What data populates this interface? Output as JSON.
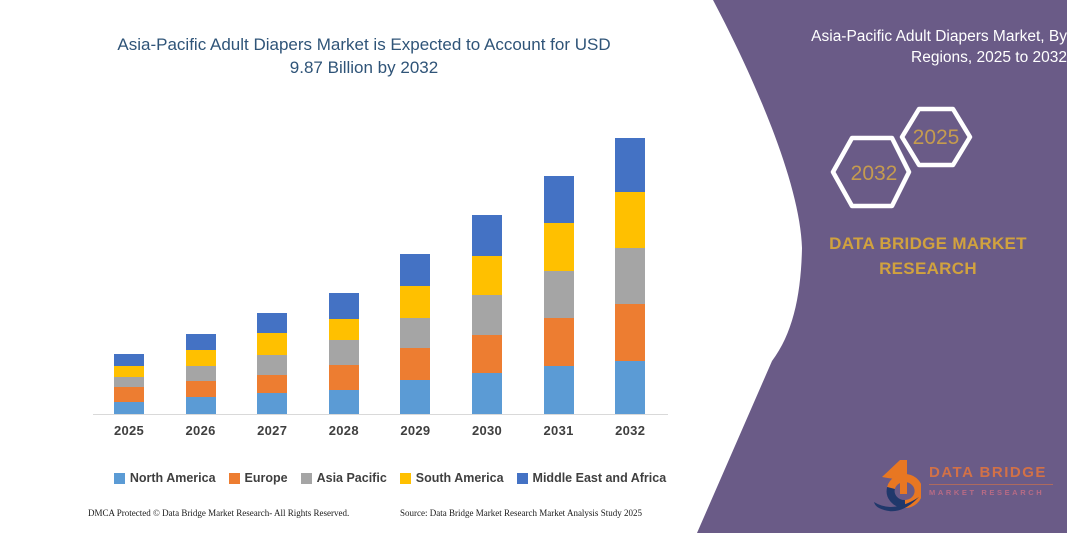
{
  "chart_data": {
    "type": "bar",
    "stacked": true,
    "title": "Asia-Pacific Adult Diapers Market is Expected to Account for USD 9.87 Billion by 2032",
    "xlabel": "",
    "ylabel": "",
    "y_axis_visible": false,
    "units": "relative segment heights (no numeric axis shown in figure)",
    "legend_position": "bottom",
    "categories": [
      "2025",
      "2026",
      "2027",
      "2028",
      "2029",
      "2030",
      "2031",
      "2032"
    ],
    "series": [
      {
        "name": "North America",
        "color": "#5B9BD5",
        "values": [
          12,
          17,
          21,
          24,
          34,
          41,
          48,
          53
        ]
      },
      {
        "name": "Europe",
        "color": "#ED7D31",
        "values": [
          15,
          16,
          18,
          25,
          32,
          38,
          48,
          57
        ]
      },
      {
        "name": "Asia Pacific",
        "color": "#A5A5A5",
        "values": [
          10,
          15,
          20,
          25,
          30,
          40,
          47,
          56
        ]
      },
      {
        "name": "South America",
        "color": "#FFC000",
        "values": [
          11,
          16,
          22,
          21,
          32,
          39,
          48,
          56
        ]
      },
      {
        "name": "Middle East and Africa",
        "color": "#4472C4",
        "values": [
          12,
          16,
          20,
          26,
          32,
          41,
          47,
          54
        ]
      }
    ],
    "totals": [
      60,
      80,
      101,
      121,
      160,
      199,
      238,
      276
    ],
    "highlight_value": "USD 9.87 Billion by 2032"
  },
  "footer": {
    "left": "DMCA Protected © Data Bridge Market Research-  All Rights Reserved.",
    "source": "Source: Data Bridge Market Research  Market Analysis Study 2025"
  },
  "panel": {
    "bg_color": "#6A5B87",
    "title": "Asia-Pacific Adult Diapers Market, By Regions, 2025 to 2032",
    "title_color": "#FFFFFF",
    "hexagons": [
      {
        "label": "2032"
      },
      {
        "label": "2025"
      }
    ],
    "hex_text_color": "#C59B4F",
    "brand_text": "DATA BRIDGE MARKET RESEARCH",
    "brand_color": "#D1A23E",
    "logo": {
      "text_primary": "DATA BRIDGE",
      "text_secondary": "MARKET RESEARCH",
      "icon_orange": "#E87722",
      "icon_blue": "#20386B"
    }
  },
  "colors": {
    "chart_title": "#2F5478",
    "axis_text": "#3F3F3F",
    "axis_line": "#D9D9D9"
  }
}
